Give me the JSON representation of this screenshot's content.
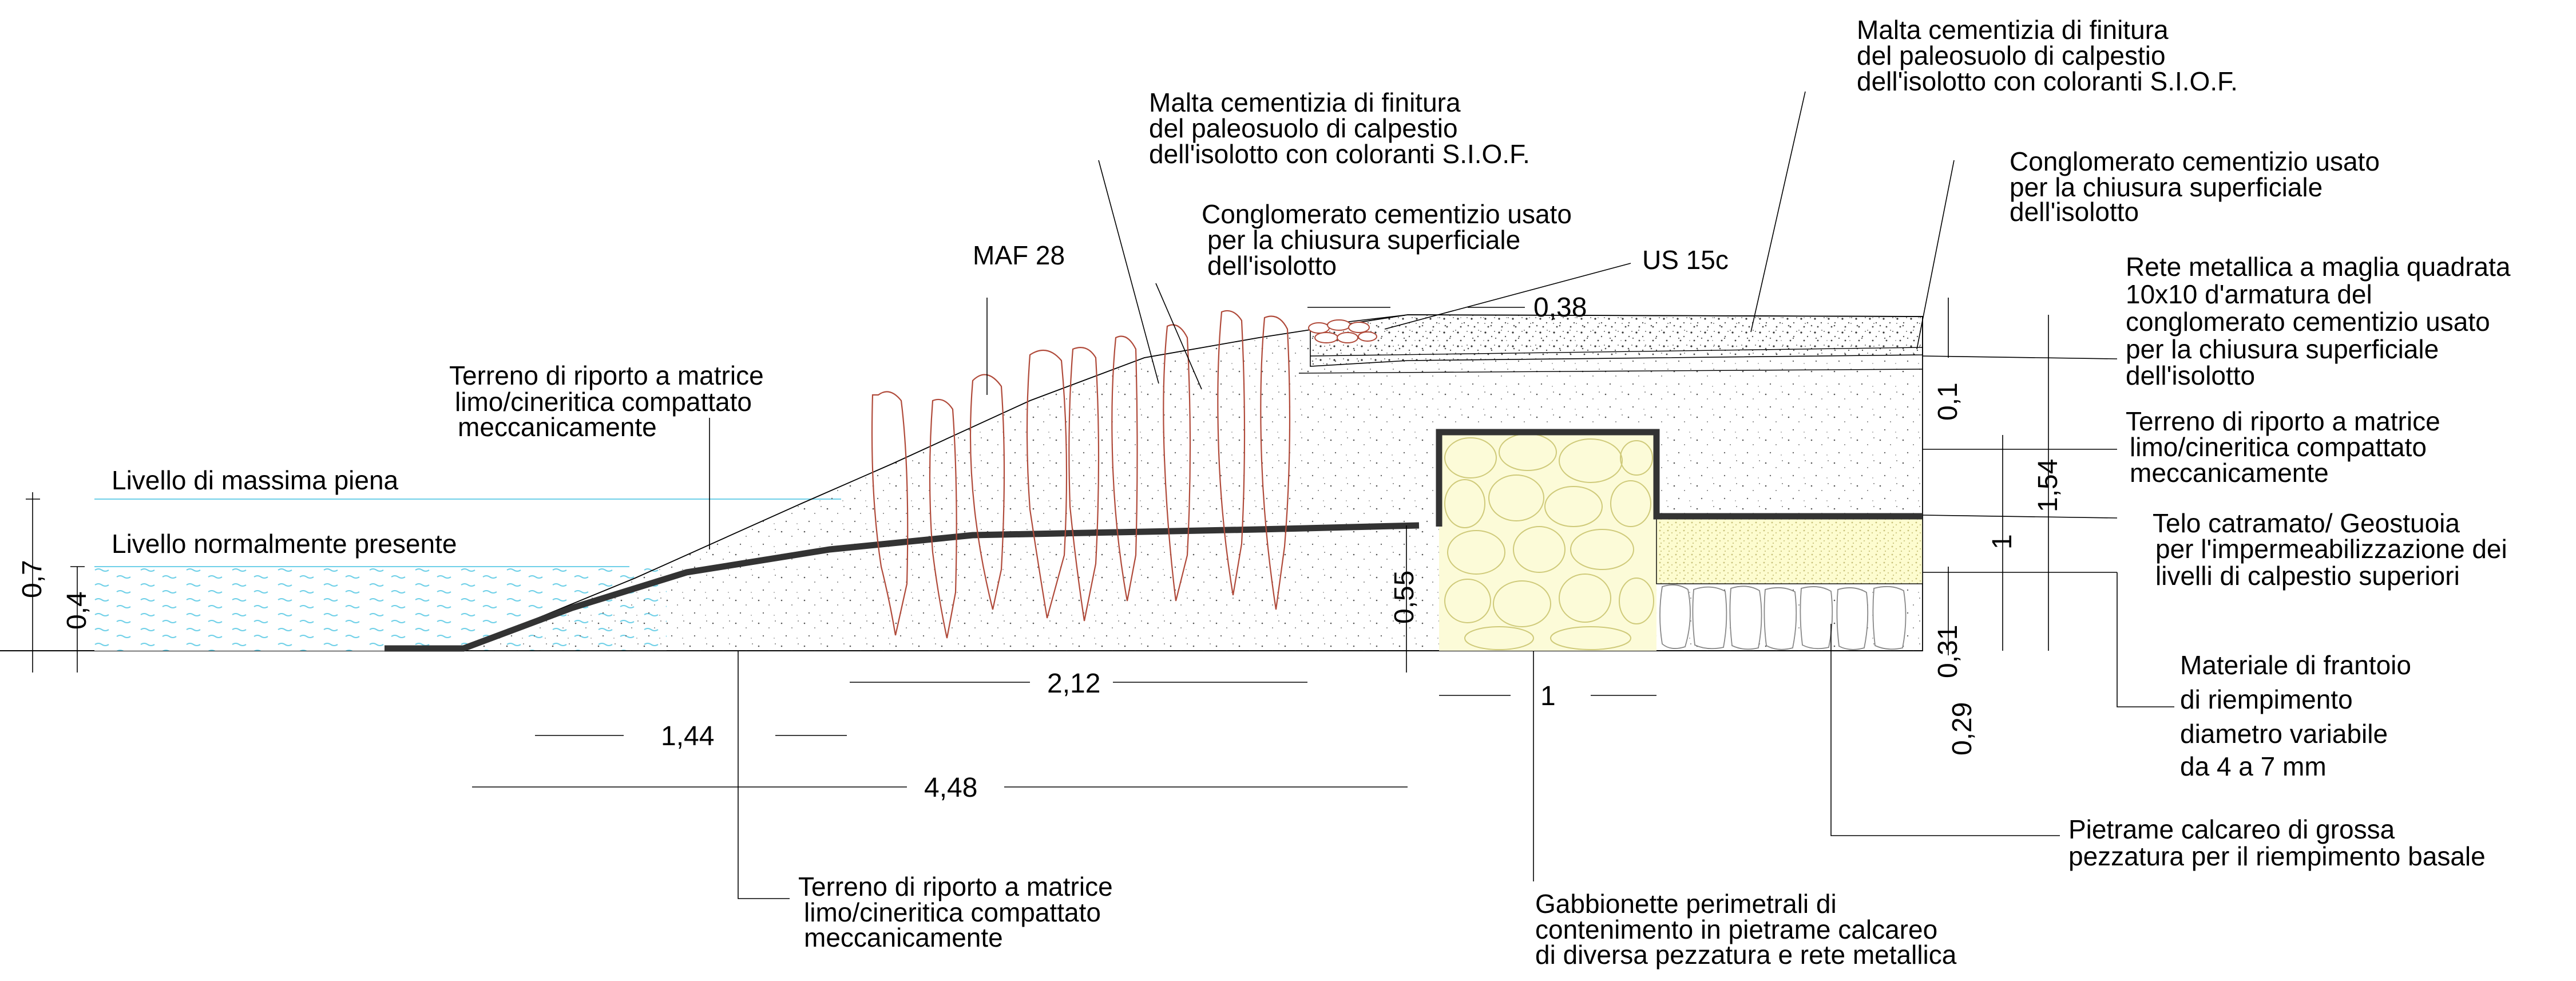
{
  "labels": {
    "max_level": "Livello di massima piena",
    "normal_level": "Livello normalmente presente",
    "maf": "MAF 28",
    "us": "US 15c",
    "fill_left": [
      "Terreno di riporto  a matrice",
      "limo/cineritica compattato",
      "meccanicamente"
    ],
    "fill_bottom": [
      "Terreno di riporto  a matrice",
      "limo/cineritica compattato",
      "meccanicamente"
    ],
    "fill_right": [
      "Terreno di riporto  a matrice",
      "limo/cineritica compattato",
      "meccanicamente"
    ],
    "mortar_mid": [
      "Malta cementizia di finitura",
      "del paleosuolo di calpestio",
      "dell'isolotto con coloranti S.I.O.F."
    ],
    "mortar_top": [
      "Malta cementizia di finitura",
      "del paleosuolo di calpestio",
      "dell'isolotto con coloranti S.I.O.F."
    ],
    "concrete_mid": [
      "Conglomerato cementizio usato",
      "per la chiusura superficiale",
      "dell'isolotto"
    ],
    "concrete_right": [
      "Conglomerato cementizio usato",
      "per la chiusura superficiale",
      "dell'isolotto"
    ],
    "mesh": [
      "Rete metallica a maglia quadrata",
      "10x10 d'armatura del",
      "conglomerato cementizio usato",
      "per la chiusura superficiale",
      "dell'isolotto"
    ],
    "membrane": [
      "Telo catramato/ Geostuoia",
      "per l'impermeabilizzazione dei",
      "livelli di calpestio superiori"
    ],
    "gravel": [
      "Materiale di frantoio",
      "di riempimento",
      "diametro variabile",
      "da 4 a 7 mm"
    ],
    "rubble": [
      "Pietrame calcareo di grossa",
      "pezzatura per il riempimento basale"
    ],
    "gabion": [
      "Gabbionette perimetrali di",
      "contenimento in pietrame calcareo",
      "di diversa pezzatura e rete metallica"
    ]
  },
  "dimensions": {
    "d_0_7": "0,7",
    "d_0_4": "0,4",
    "d_1_44": "1,44",
    "d_4_48": "4,48",
    "d_2_12": "2,12",
    "d_0_55": "0,55",
    "d_1_gabion": "1",
    "d_0_38": "0,38",
    "d_0_1": "0,1",
    "d_1_54": "1,54",
    "d_1_right": "1",
    "d_0_31": "0,31",
    "d_0_29": "0,29"
  },
  "colors": {
    "water": "#6fd0e8",
    "stone_outline": "#b04a3a",
    "gravel_fill": "#fdfccf",
    "gabion_fill": "#fcfbd8"
  }
}
